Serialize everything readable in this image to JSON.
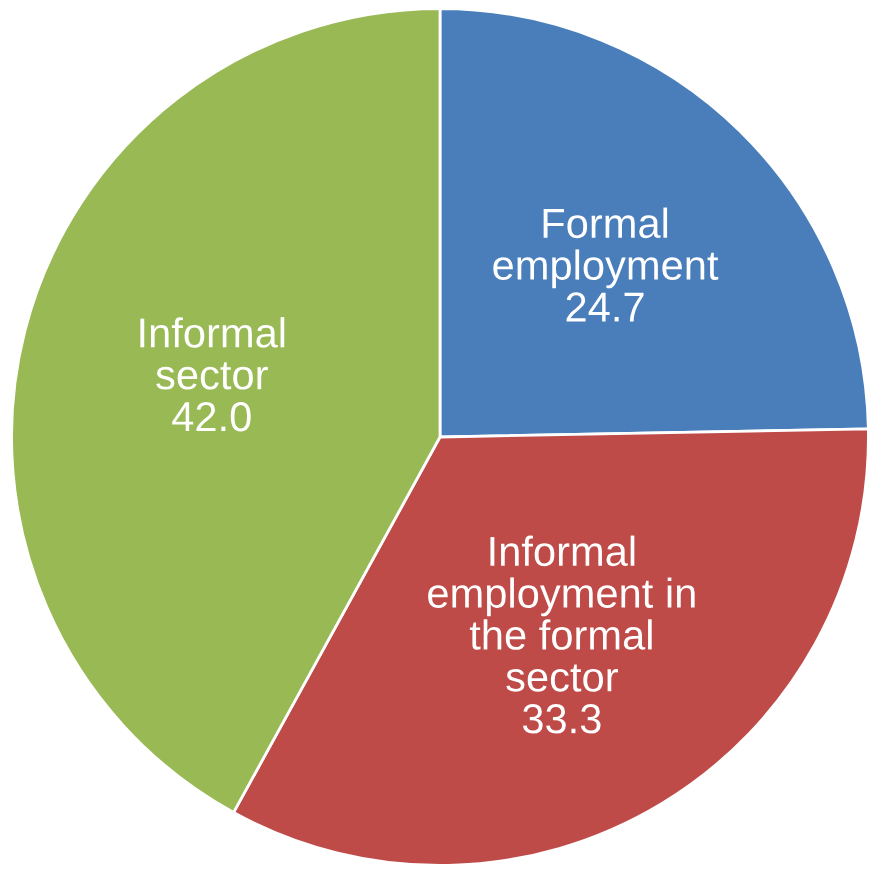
{
  "chart_data": {
    "type": "pie",
    "categories": [
      "Formal employment",
      "Informal employment in the formal sector",
      "Informal sector"
    ],
    "values": [
      24.7,
      33.3,
      42.0
    ],
    "colors": [
      "#4a7ebb",
      "#be4b48",
      "#98b954"
    ],
    "value_labels": [
      "24.7",
      "33.3",
      "42.0"
    ],
    "legend": false
  }
}
